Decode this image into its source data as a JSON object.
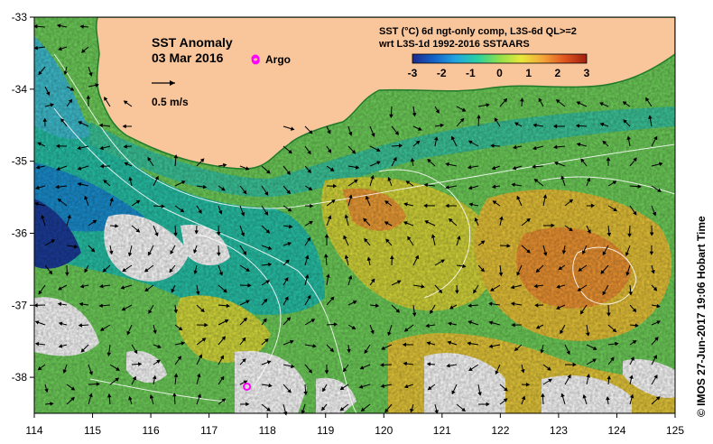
{
  "title": "SST Anomaly",
  "date": "03 Mar 2016",
  "argo_label": "Argo",
  "vector_scale_label": "0.5 m/s",
  "colorbar": {
    "title_line1": "SST (°C) 6d ngt-only comp, L3S-6d QL>=2",
    "title_line2": "wrt L3S-1d 1992-2016 SSTAARS",
    "ticks": [
      "-3",
      "-2",
      "-1",
      "0",
      "1",
      "2",
      "3"
    ],
    "colors": [
      "#1b2a8c",
      "#1463c8",
      "#22a6e0",
      "#2ad0a0",
      "#8fe04a",
      "#e9e83a",
      "#f4a43a",
      "#e0541f",
      "#a0200f"
    ]
  },
  "axes": {
    "x_ticks": [
      "114",
      "115",
      "116",
      "117",
      "118",
      "119",
      "120",
      "121",
      "122",
      "123",
      "124",
      "125"
    ],
    "y_ticks": [
      "-33",
      "-34",
      "-35",
      "-36",
      "-37",
      "-38"
    ]
  },
  "argo_floats": [
    {
      "lon": 117.8,
      "lat": -33.6
    },
    {
      "lon": 117.65,
      "lat": -38.13
    }
  ],
  "colors": {
    "land": "#f9c59b",
    "no_data": "#ffffff",
    "argo_marker": "#ff00ff"
  },
  "credit": "© IMOS 27-Jun-2017 19:06 Hobart Time"
}
